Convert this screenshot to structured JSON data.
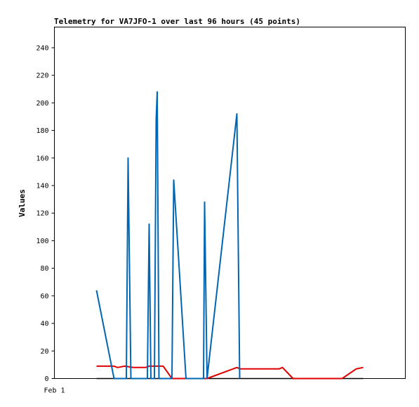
{
  "chart_data": {
    "type": "line",
    "title": "Telemetry for VA7JFO-1 over last 96 hours (45 points)",
    "ylabel": "Values",
    "xlabel": "",
    "x_tick_labels": [
      {
        "x": 0,
        "label": "Feb 1"
      }
    ],
    "ylim": [
      0,
      255
    ],
    "xlim": [
      0,
      100
    ],
    "y_ticks": [
      0,
      20,
      40,
      60,
      80,
      100,
      120,
      140,
      160,
      180,
      200,
      220,
      240
    ],
    "grid": false,
    "legend": "none",
    "series": [
      {
        "color": "#0066b3",
        "points": [
          [
            12.0,
            64
          ],
          [
            17.0,
            0
          ],
          [
            20.5,
            0
          ],
          [
            21.0,
            160
          ],
          [
            21.8,
            0
          ],
          [
            26.5,
            0
          ],
          [
            27.0,
            112
          ],
          [
            27.5,
            0
          ],
          [
            28.5,
            0
          ],
          [
            29.0,
            188
          ],
          [
            29.3,
            208
          ],
          [
            29.8,
            0
          ],
          [
            33.5,
            0
          ],
          [
            34.0,
            144
          ],
          [
            37.5,
            0
          ],
          [
            42.5,
            0
          ],
          [
            42.8,
            128
          ],
          [
            43.5,
            0
          ],
          [
            52.0,
            192
          ],
          [
            52.8,
            0
          ]
        ]
      },
      {
        "color": "#e00000",
        "points": [
          [
            12.0,
            9
          ],
          [
            17.0,
            9
          ],
          [
            18.0,
            8
          ],
          [
            20.0,
            9
          ],
          [
            22.5,
            8
          ],
          [
            26.0,
            8
          ],
          [
            27.0,
            9
          ],
          [
            31.0,
            9
          ],
          [
            33.5,
            0
          ],
          [
            43.5,
            0
          ],
          [
            52.0,
            8
          ],
          [
            53.0,
            7
          ],
          [
            64.0,
            7
          ],
          [
            65.0,
            8
          ],
          [
            68.0,
            0
          ],
          [
            82.0,
            0
          ],
          [
            86.0,
            7
          ],
          [
            88.0,
            8
          ]
        ]
      },
      {
        "color": "#000000",
        "points": [
          [
            12.0,
            0
          ],
          [
            88.0,
            0
          ]
        ]
      }
    ]
  }
}
